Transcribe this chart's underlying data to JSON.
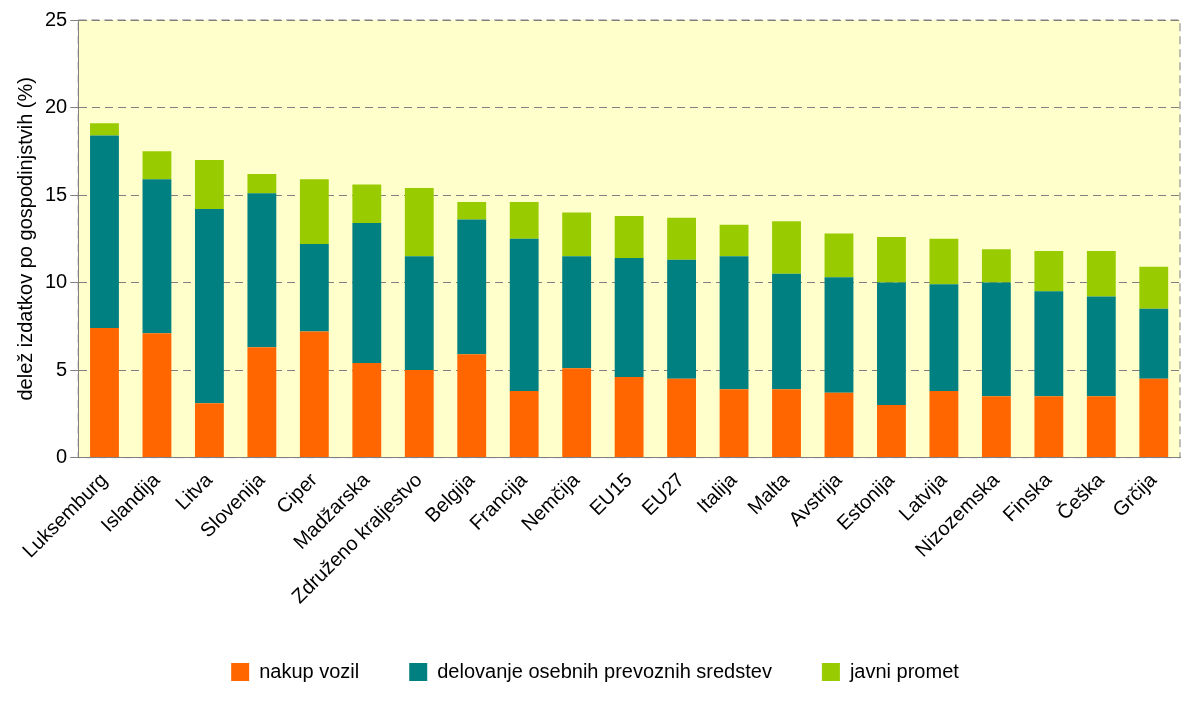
{
  "chart_data": {
    "type": "bar",
    "stacked": true,
    "ylabel": "delež izdatkov po gospodinjstvih (%)",
    "categories": [
      "Luksemburg",
      "Islandija",
      "Litva",
      "Slovenija",
      "Ciper",
      "Madžarska",
      "Združeno kraljestvo",
      "Belgija",
      "Francija",
      "Nemčija",
      "EU15",
      "EU27",
      "Italija",
      "Malta",
      "Avstrija",
      "Estonija",
      "Latvija",
      "Nizozemska",
      "Finska",
      "Češka",
      "Grčija"
    ],
    "series": [
      {
        "name": "nakup vozil",
        "color": "#ff6600",
        "values": [
          7.4,
          7.1,
          3.1,
          6.3,
          7.2,
          5.4,
          5.0,
          5.9,
          3.8,
          5.1,
          4.6,
          4.5,
          3.9,
          3.9,
          3.7,
          3.0,
          3.8,
          3.5,
          3.5,
          3.5,
          4.5
        ]
      },
      {
        "name": "delovanje osebnih prevoznih sredstev",
        "color": "#008080",
        "values": [
          11.0,
          8.8,
          11.1,
          8.8,
          5.0,
          8.0,
          6.5,
          7.7,
          8.7,
          6.4,
          6.8,
          6.8,
          7.6,
          6.6,
          6.6,
          7.0,
          6.1,
          6.5,
          6.0,
          5.7,
          4.0
        ]
      },
      {
        "name": "javni promet",
        "color": "#99cc00",
        "values": [
          0.7,
          1.6,
          2.8,
          1.1,
          3.7,
          2.2,
          3.9,
          1.0,
          2.1,
          2.5,
          2.4,
          2.4,
          1.8,
          3.0,
          2.5,
          2.6,
          2.6,
          1.9,
          2.3,
          2.6,
          2.4
        ]
      }
    ],
    "ylim": [
      0,
      25
    ],
    "yticks": [
      0,
      5,
      10,
      15,
      20,
      25
    ],
    "grid": "y",
    "legend": "bottom"
  }
}
